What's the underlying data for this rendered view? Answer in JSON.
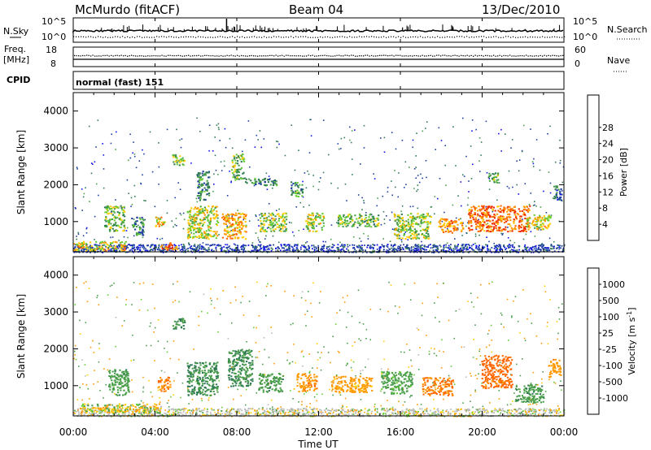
{
  "header": {
    "station": "McMurdo (fitACF)",
    "beam": "Beam 04",
    "date": "13/Dec/2010"
  },
  "top_panels": {
    "nsky_label": "N.Sky",
    "nsearch_label": "N.Search",
    "nsky_tick_top": "10^5",
    "nsky_tick_bottom": "10^0",
    "nsearch_tick_top": "10^5",
    "nsearch_tick_bottom": "10^0",
    "freq_label_1": "Freq.",
    "freq_label_2": "[MHz]",
    "freq_tick_top": "18",
    "freq_tick_bottom": "8",
    "nave_label": "Nave",
    "nave_tick_top": "60",
    "nave_tick_bottom": "0",
    "cpid_label": "CPID",
    "cpid_value": "normal (fast) 151"
  },
  "colors": {
    "power_scale": [
      "#1010ee",
      "#1e3fa0",
      "#2f7a52",
      "#4a9e4a",
      "#66cc33",
      "#ffcc00",
      "#ff9900",
      "#ff6600",
      "#ee2200"
    ],
    "velocity_scale": [
      "#1a33aa",
      "#2f7a52",
      "#4a9e4a",
      "#66cc33",
      "#bbbbbb",
      "#ffcc00",
      "#ff9900",
      "#ff6600",
      "#ee2200"
    ]
  },
  "chart_data": [
    {
      "type": "heatmap",
      "title": "Power",
      "xlabel": "Time UT",
      "ylabel": "Slant Range [km]",
      "x_ticks": [
        "00:00",
        "04:00",
        "08:00",
        "12:00",
        "16:00",
        "20:00",
        "00:00"
      ],
      "y_ticks": [
        "1000",
        "2000",
        "3000",
        "4000"
      ],
      "ylim": [
        180,
        4500
      ],
      "xlim_hours": [
        0,
        24
      ],
      "colorbar_label": "Power [dB]",
      "colorbar_ticks": [
        "4",
        "8",
        "12",
        "16",
        "20",
        "24",
        "28"
      ],
      "colorbar_range": [
        0,
        32
      ],
      "echo_regions": [
        {
          "t": 0.3,
          "r": 350,
          "dt": 3.2,
          "dr": 250,
          "v": 20
        },
        {
          "t": 4.5,
          "r": 350,
          "dt": 0.8,
          "dr": 200,
          "v": 26
        },
        {
          "t": 1.8,
          "r": 1100,
          "dt": 1.0,
          "dr": 700,
          "v": 14
        },
        {
          "t": 3.0,
          "r": 900,
          "dt": 0.6,
          "dr": 500,
          "v": 10
        },
        {
          "t": 4.1,
          "r": 1000,
          "dt": 0.5,
          "dr": 300,
          "v": 22
        },
        {
          "t": 5.0,
          "r": 2700,
          "dt": 0.6,
          "dr": 300,
          "v": 15
        },
        {
          "t": 6.0,
          "r": 1000,
          "dt": 1.5,
          "dr": 900,
          "v": 18
        },
        {
          "t": 6.2,
          "r": 2000,
          "dt": 0.6,
          "dr": 800,
          "v": 10
        },
        {
          "t": 7.6,
          "r": 900,
          "dt": 1.2,
          "dr": 700,
          "v": 22
        },
        {
          "t": 7.9,
          "r": 2500,
          "dt": 0.6,
          "dr": 700,
          "v": 14
        },
        {
          "t": 8.8,
          "r": 2100,
          "dt": 1.6,
          "dr": 200,
          "v": 10
        },
        {
          "t": 9.5,
          "r": 1000,
          "dt": 1.3,
          "dr": 500,
          "v": 16
        },
        {
          "t": 10.8,
          "r": 1900,
          "dt": 0.6,
          "dr": 400,
          "v": 12
        },
        {
          "t": 11.6,
          "r": 1000,
          "dt": 0.9,
          "dr": 500,
          "v": 18
        },
        {
          "t": 13.5,
          "r": 1050,
          "dt": 2.0,
          "dr": 350,
          "v": 14
        },
        {
          "t": 16.2,
          "r": 900,
          "dt": 1.8,
          "dr": 700,
          "v": 16
        },
        {
          "t": 18.2,
          "r": 900,
          "dt": 1.2,
          "dr": 400,
          "v": 24
        },
        {
          "t": 20.2,
          "r": 1100,
          "dt": 3.0,
          "dr": 700,
          "v": 26
        },
        {
          "t": 20.4,
          "r": 2200,
          "dt": 0.5,
          "dr": 300,
          "v": 14
        },
        {
          "t": 22.5,
          "r": 1000,
          "dt": 1.2,
          "dr": 400,
          "v": 20
        },
        {
          "t": 23.6,
          "r": 1800,
          "dt": 0.4,
          "dr": 400,
          "v": 8
        }
      ]
    },
    {
      "type": "heatmap",
      "title": "Velocity",
      "xlabel": "Time UT",
      "ylabel": "Slant Range [km]",
      "x_ticks": [
        "00:00",
        "04:00",
        "08:00",
        "12:00",
        "16:00",
        "20:00",
        "00:00"
      ],
      "y_ticks": [
        "1000",
        "2000",
        "3000",
        "4000"
      ],
      "ylim": [
        180,
        4500
      ],
      "xlim_hours": [
        0,
        24
      ],
      "colorbar_label": "Velocity [m s^-1]",
      "colorbar_ticks": [
        "1000",
        "500",
        "100",
        "25",
        "-25",
        "-100",
        "-500",
        "-1000"
      ],
      "echo_regions": [
        {
          "t": 1.5,
          "r": 400,
          "dt": 4.0,
          "dr": 250,
          "v": 0
        },
        {
          "t": 2.0,
          "r": 1100,
          "dt": 1.0,
          "dr": 700,
          "v": 200
        },
        {
          "t": 4.3,
          "r": 1050,
          "dt": 0.6,
          "dr": 400,
          "v": -300
        },
        {
          "t": 5.0,
          "r": 2700,
          "dt": 0.6,
          "dr": 300,
          "v": 300
        },
        {
          "t": 6.0,
          "r": 1200,
          "dt": 1.5,
          "dr": 900,
          "v": 300
        },
        {
          "t": 7.9,
          "r": 1500,
          "dt": 1.2,
          "dr": 1000,
          "v": 300
        },
        {
          "t": 9.4,
          "r": 1100,
          "dt": 1.2,
          "dr": 500,
          "v": 200
        },
        {
          "t": 11.2,
          "r": 1100,
          "dt": 1.0,
          "dr": 500,
          "v": -200
        },
        {
          "t": 13.2,
          "r": 1050,
          "dt": 2.0,
          "dr": 450,
          "v": -150
        },
        {
          "t": 15.5,
          "r": 1100,
          "dt": 1.5,
          "dr": 600,
          "v": 150
        },
        {
          "t": 17.5,
          "r": 1000,
          "dt": 1.5,
          "dr": 500,
          "v": -300
        },
        {
          "t": 20.4,
          "r": 1400,
          "dt": 1.5,
          "dr": 900,
          "v": -400
        },
        {
          "t": 22.0,
          "r": 800,
          "dt": 1.4,
          "dr": 500,
          "v": 200
        },
        {
          "t": 23.4,
          "r": 1500,
          "dt": 0.6,
          "dr": 500,
          "v": -200
        }
      ]
    }
  ],
  "chart_labels": {
    "power_cb": "Power [dB]",
    "velocity_cb": "Velocity [m s",
    "velocity_cb_exp": "-1",
    "velocity_cb_end": "]"
  }
}
